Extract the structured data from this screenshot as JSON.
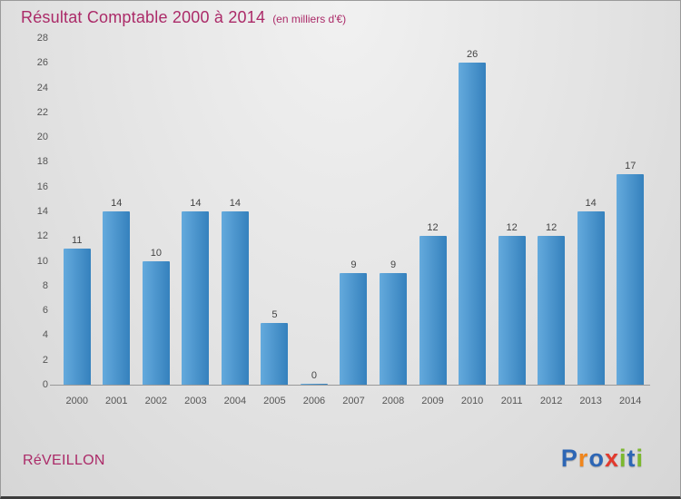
{
  "header": {
    "title": "Résultat Comptable 2000 à 2014",
    "subtitle": "(en milliers d'€)"
  },
  "chart_data": {
    "type": "bar",
    "title": "Résultat Comptable 2000 à 2014",
    "subtitle": "(en milliers d'€)",
    "categories": [
      "2000",
      "2001",
      "2002",
      "2003",
      "2004",
      "2005",
      "2006",
      "2007",
      "2008",
      "2009",
      "2010",
      "2011",
      "2012",
      "2013",
      "2014"
    ],
    "values": [
      11,
      14,
      10,
      14,
      14,
      5,
      0,
      9,
      9,
      12,
      26,
      12,
      12,
      14,
      17
    ],
    "ylim": [
      0,
      28
    ],
    "ytick_step": 2,
    "grid": false,
    "legend": "none",
    "value_labels": true,
    "colors": {
      "bar_light": "#64aadd",
      "bar_dark": "#3581bd",
      "title": "#ab2a68",
      "axis_text": "#555555",
      "value_text": "#444444"
    }
  },
  "footer": {
    "company": "RéVEILLON",
    "logo": {
      "letters": [
        {
          "ch": "P",
          "color": "#2d66b5"
        },
        {
          "ch": "r",
          "color": "#f0861c"
        },
        {
          "ch": "o",
          "color": "#2d66b5"
        },
        {
          "ch": "x",
          "color": "#e23a2e"
        },
        {
          "ch": "i",
          "color": "#7cb82f"
        },
        {
          "ch": "t",
          "color": "#2d66b5"
        },
        {
          "ch": "i",
          "color": "#7cb82f"
        }
      ]
    }
  }
}
